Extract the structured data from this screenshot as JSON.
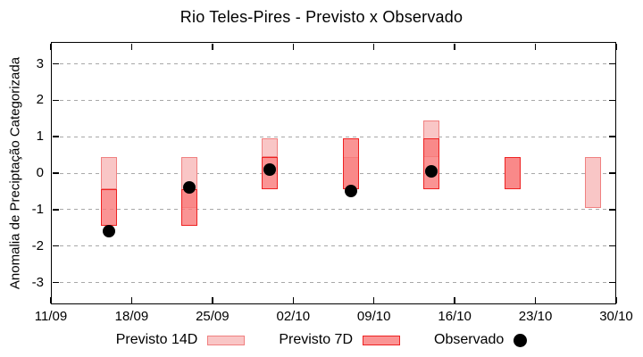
{
  "title": "Rio Teles-Pires - Previsto x Observado",
  "colors": {
    "previsto_14d_fill": "#f9c6c6",
    "previsto_14d_border": "#f08080",
    "previsto_7d_fill": "rgba(249,121,121,0.8)",
    "previsto_7d_border": "#ee2222",
    "observado": "#000000",
    "grid": "#a8a8a8",
    "axis": "#000000",
    "background": "#ffffff"
  },
  "legend": {
    "items": [
      {
        "label": "Previsto 14D"
      },
      {
        "label": "Previsto 7D"
      },
      {
        "label": "Observado"
      }
    ]
  },
  "chart_data": {
    "type": "bar",
    "title": "Rio Teles-Pires - Previsto x Observado",
    "xlabel": "",
    "ylabel": "Anomalia de Preciptação Categorizada",
    "ylim": [
      -3.6,
      3.6
    ],
    "y_ticks": [
      3,
      2,
      1,
      0,
      -1,
      -2,
      -3
    ],
    "grid": true,
    "legend_position": "bottom",
    "x_axis": {
      "tick_labels": [
        "11/09",
        "18/09",
        "25/09",
        "02/10",
        "09/10",
        "16/10",
        "23/10",
        "30/10"
      ],
      "tick_days": [
        0,
        7,
        14,
        21,
        28,
        35,
        42,
        49
      ],
      "range_days": [
        0,
        49
      ]
    },
    "series": [
      {
        "name": "Previsto 14D",
        "style": "range-bar",
        "points": [
          {
            "date": "16/09",
            "day": 5,
            "low": -0.45,
            "high": 0.45
          },
          {
            "date": "23/09",
            "day": 12,
            "low": -0.95,
            "high": 0.45
          },
          {
            "date": "30/09",
            "day": 19,
            "low": 0.45,
            "high": 0.95
          },
          {
            "date": "07/10",
            "day": 26,
            "low": -0.45,
            "high": 0.45
          },
          {
            "date": "14/10",
            "day": 33,
            "low": 0.45,
            "high": 1.45
          },
          {
            "date": "21/10",
            "day": 40,
            "low": -0.45,
            "high": 0.45
          },
          {
            "date": "28/10",
            "day": 47,
            "low": -0.95,
            "high": 0.45
          }
        ]
      },
      {
        "name": "Previsto 7D",
        "style": "range-bar",
        "points": [
          {
            "date": "16/09",
            "day": 5,
            "low": -1.45,
            "high": -0.45
          },
          {
            "date": "23/09",
            "day": 12,
            "low": -1.45,
            "high": -0.45
          },
          {
            "date": "30/09",
            "day": 19,
            "low": -0.45,
            "high": 0.45
          },
          {
            "date": "07/10",
            "day": 26,
            "low": -0.45,
            "high": 0.95
          },
          {
            "date": "14/10",
            "day": 33,
            "low": -0.45,
            "high": 0.95
          },
          {
            "date": "21/10",
            "day": 40,
            "low": -0.45,
            "high": 0.45
          }
        ]
      },
      {
        "name": "Observado",
        "style": "dot",
        "points": [
          {
            "date": "16/09",
            "day": 5,
            "value": -1.6
          },
          {
            "date": "23/09",
            "day": 12,
            "value": -0.4
          },
          {
            "date": "30/09",
            "day": 19,
            "value": 0.1
          },
          {
            "date": "07/10",
            "day": 26,
            "value": -0.5
          },
          {
            "date": "14/10",
            "day": 33,
            "value": 0.05
          }
        ]
      }
    ]
  }
}
